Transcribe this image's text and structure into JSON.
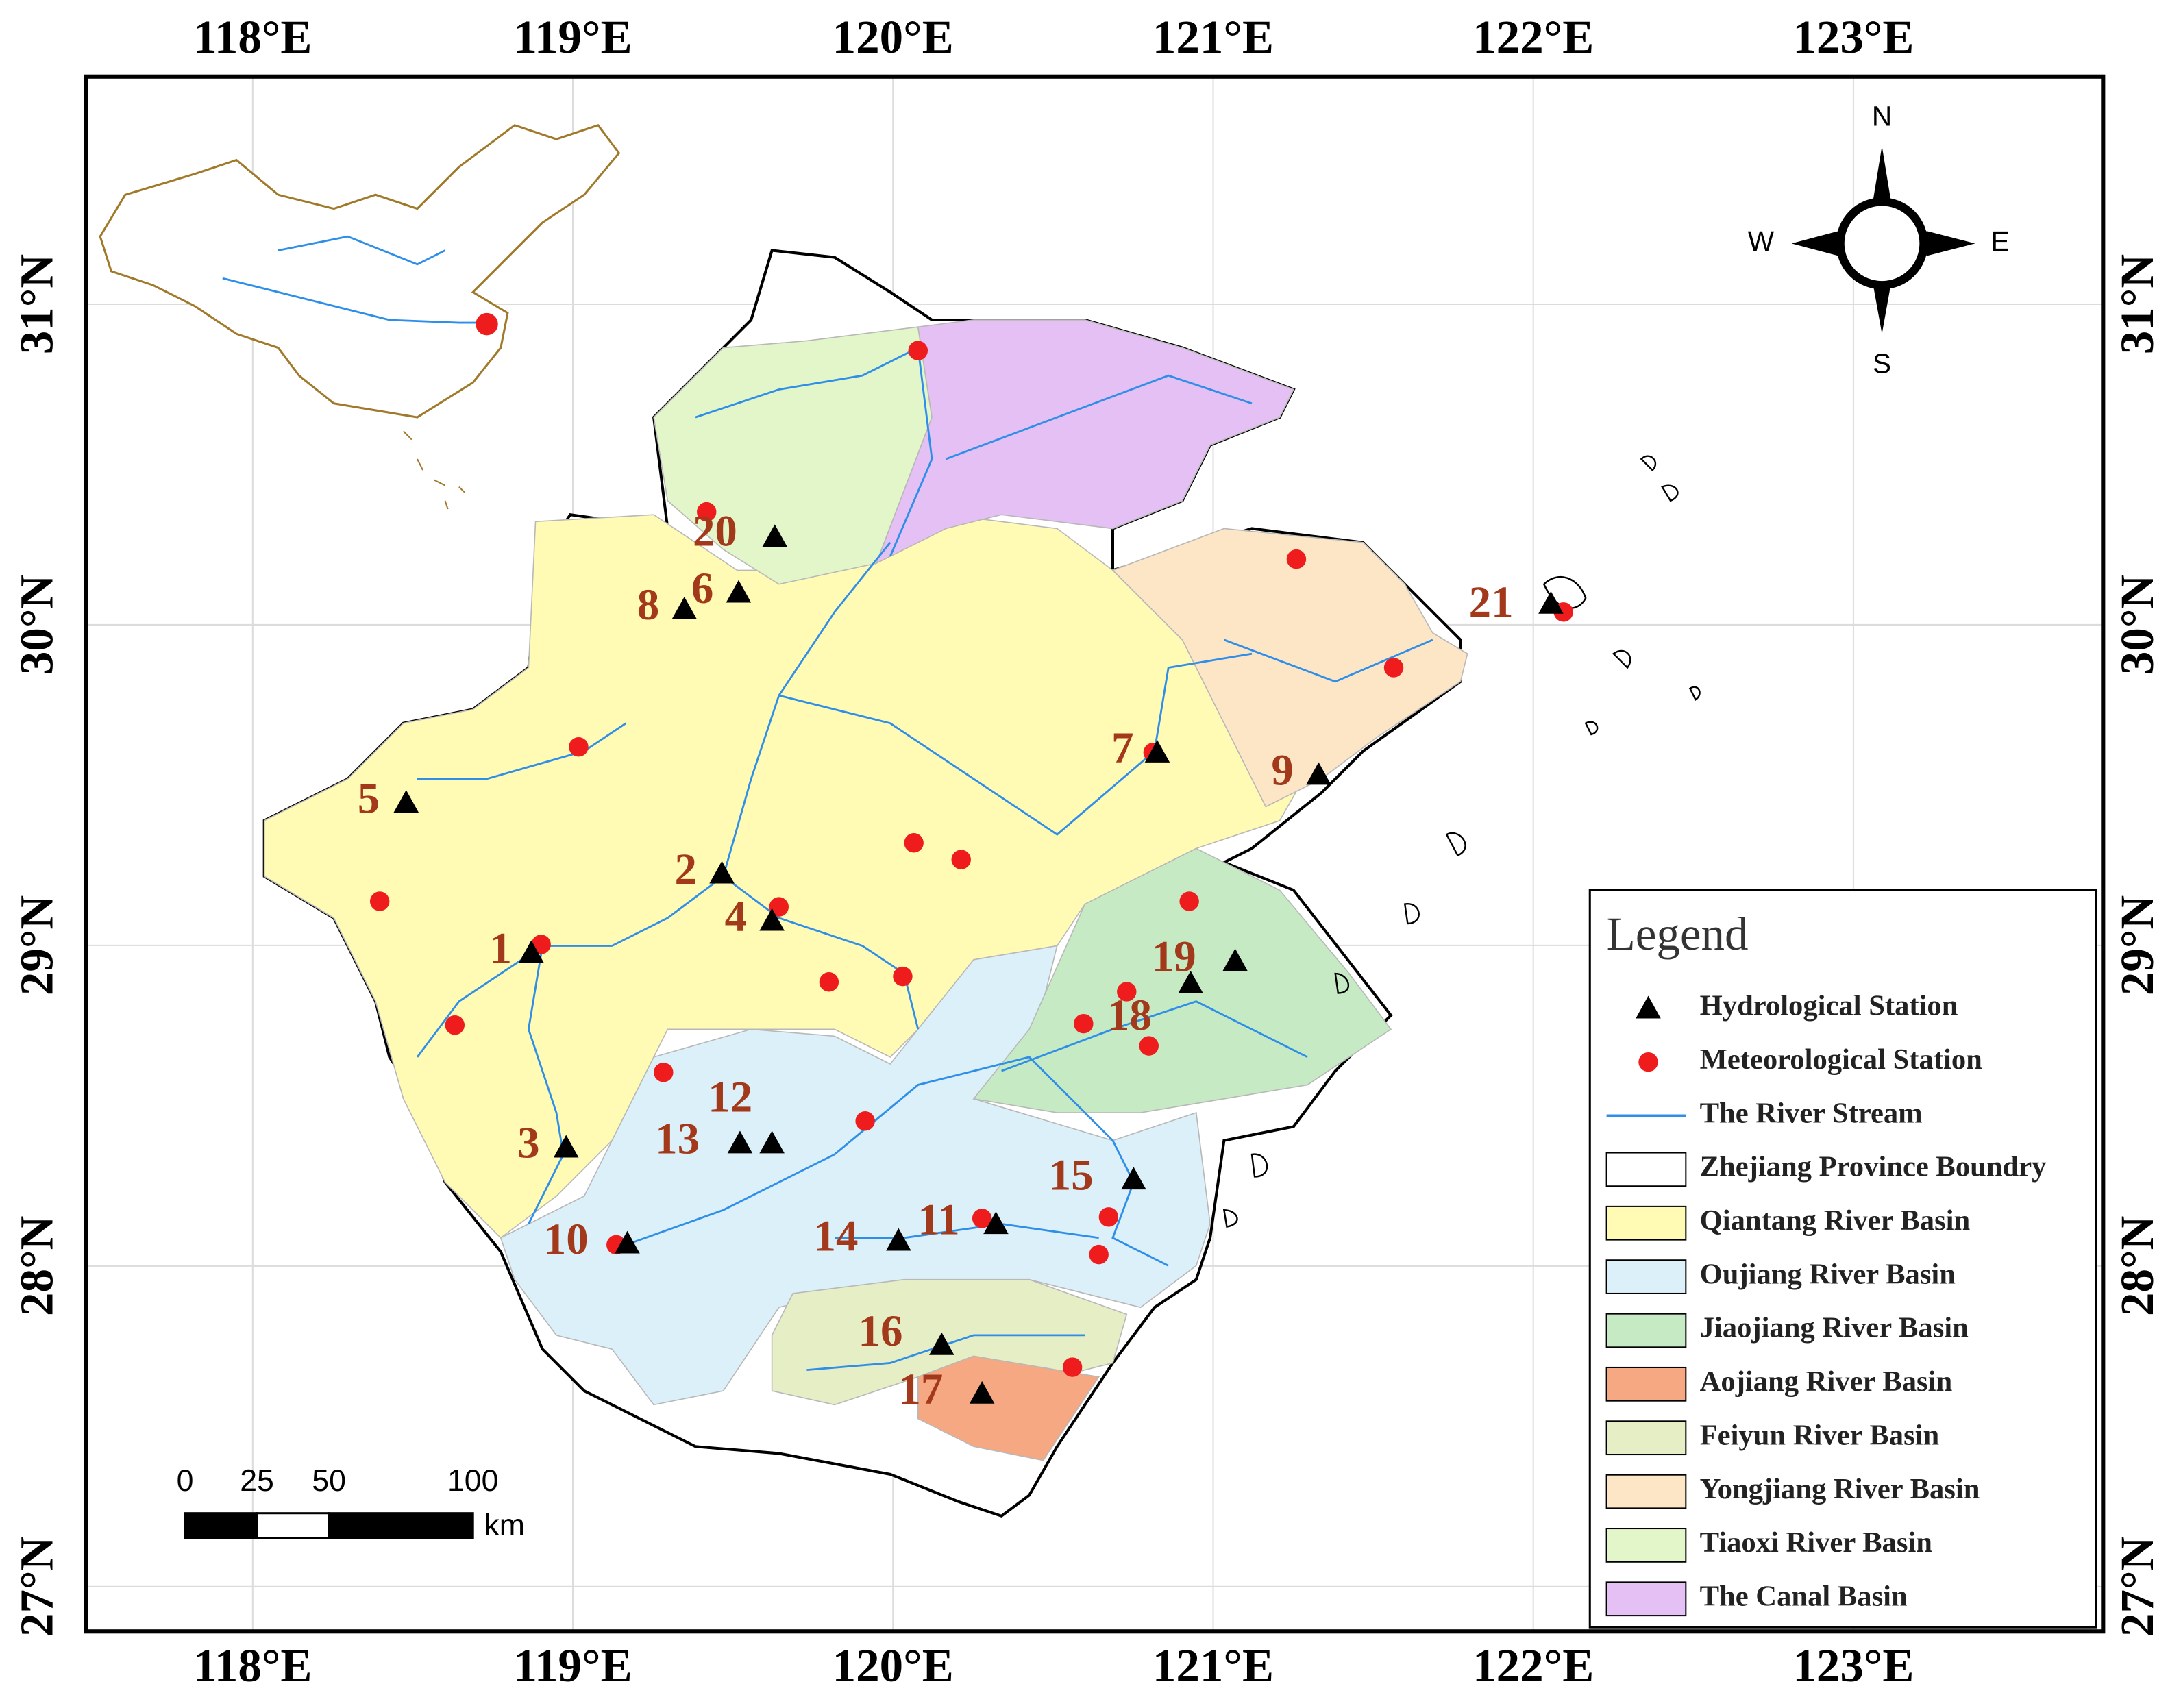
{
  "map": {
    "xlim": [
      117.48,
      123.78
    ],
    "ylim": [
      26.86,
      31.71
    ],
    "lon_ticks": [
      {
        "value": 118,
        "label": "118°E"
      },
      {
        "value": 119,
        "label": "119°E"
      },
      {
        "value": 120,
        "label": "120°E"
      },
      {
        "value": 121,
        "label": "121°E"
      },
      {
        "value": 122,
        "label": "122°E"
      },
      {
        "value": 123,
        "label": "123°E"
      }
    ],
    "lat_ticks": [
      {
        "value": 27,
        "label": "27°N"
      },
      {
        "value": 28,
        "label": "28°N"
      },
      {
        "value": 29,
        "label": "29°N"
      },
      {
        "value": 30,
        "label": "30°N"
      },
      {
        "value": 31,
        "label": "31°N"
      }
    ],
    "grid": true,
    "stations": [
      "1",
      "2",
      "3",
      "4",
      "5",
      "6",
      "7",
      "8",
      "9",
      "10",
      "11",
      "12",
      "13",
      "14",
      "15",
      "16",
      "17",
      "18",
      "19",
      "20",
      "21"
    ],
    "compass": {
      "north": "N",
      "south": "S",
      "east": "E",
      "west": "W"
    },
    "scale_bar": {
      "ticks": [
        0,
        25,
        50,
        100
      ],
      "unit": "km"
    },
    "legend": {
      "title": "Legend",
      "items": [
        {
          "label": "Hydrological Station",
          "symbol": "triangle",
          "color": "#000000"
        },
        {
          "label": "Meteorological Station",
          "symbol": "circle",
          "color": "#ee1c1c"
        },
        {
          "label": "The River Stream",
          "symbol": "line",
          "color": "#2f8fe8"
        },
        {
          "label": "Zhejiang Province Boundry",
          "symbol": "rect",
          "color": "#ffffff"
        },
        {
          "label": "Qiantang River Basin",
          "symbol": "rect",
          "color": "#fffbb4"
        },
        {
          "label": "Oujiang River Basin",
          "symbol": "rect",
          "color": "#dcf0fa"
        },
        {
          "label": "Jiaojiang River Basin",
          "symbol": "rect",
          "color": "#c6ebc4"
        },
        {
          "label": "Aojiang River Basin",
          "symbol": "rect",
          "color": "#f5a882"
        },
        {
          "label": "Feiyun River Basin",
          "symbol": "rect",
          "color": "#e6eec6"
        },
        {
          "label": "Yongjiang River Basin",
          "symbol": "rect",
          "color": "#fde6c6"
        },
        {
          "label": "Tiaoxi River Basin",
          "symbol": "rect",
          "color": "#e2f6c9"
        },
        {
          "label": "The Canal Basin",
          "symbol": "rect",
          "color": "#e4c0f5"
        }
      ]
    }
  }
}
